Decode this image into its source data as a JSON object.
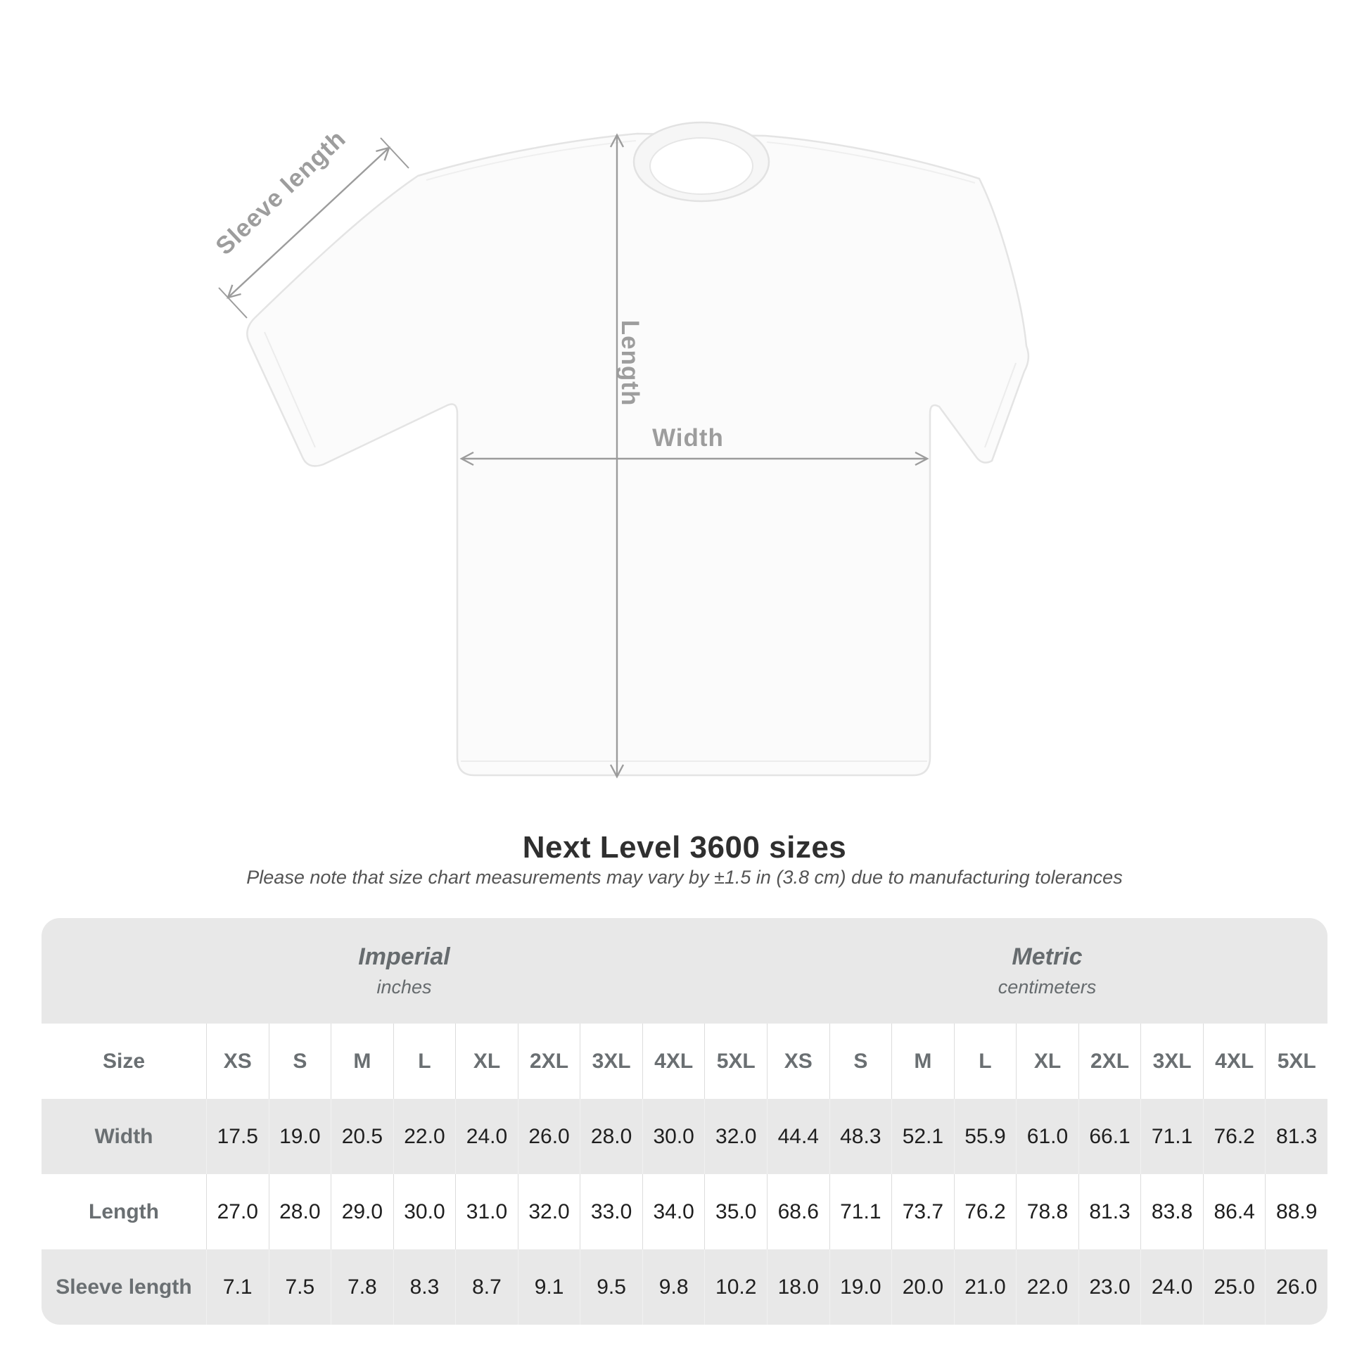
{
  "page": {
    "background": "#ffffff"
  },
  "diagram": {
    "sleeve_length_label": "Sleeve length",
    "length_label": "Length",
    "width_label": "Width",
    "line_color": "#9c9c9c",
    "label_color": "#9d9d9d"
  },
  "heading": {
    "title": "Next Level 3600 sizes",
    "subtitle": "Please note that size chart measurements may vary by ±1.5 in (3.8 cm) due to manufacturing tolerances"
  },
  "table": {
    "band_color": "#e8e8e8",
    "stripe_color": "#e8e8e8",
    "unit_groups": [
      {
        "name": "Imperial",
        "unit": "inches"
      },
      {
        "name": "Metric",
        "unit": "centimeters"
      }
    ],
    "size_col_header": "Size",
    "sizes": [
      "XS",
      "S",
      "M",
      "L",
      "XL",
      "2XL",
      "3XL",
      "4XL",
      "5XL"
    ],
    "rows": [
      {
        "label": "Width",
        "imperial": [
          "17.5",
          "19.0",
          "20.5",
          "22.0",
          "24.0",
          "26.0",
          "28.0",
          "30.0",
          "32.0"
        ],
        "metric": [
          "44.4",
          "48.3",
          "52.1",
          "55.9",
          "61.0",
          "66.1",
          "71.1",
          "76.2",
          "81.3"
        ]
      },
      {
        "label": "Length",
        "imperial": [
          "27.0",
          "28.0",
          "29.0",
          "30.0",
          "31.0",
          "32.0",
          "33.0",
          "34.0",
          "35.0"
        ],
        "metric": [
          "68.6",
          "71.1",
          "73.7",
          "76.2",
          "78.8",
          "81.3",
          "83.8",
          "86.4",
          "88.9"
        ]
      },
      {
        "label": "Sleeve length",
        "imperial": [
          "7.1",
          "7.5",
          "7.8",
          "8.3",
          "8.7",
          "9.1",
          "9.5",
          "9.8",
          "10.2"
        ],
        "metric": [
          "18.0",
          "19.0",
          "20.0",
          "21.0",
          "22.0",
          "23.0",
          "24.0",
          "25.0",
          "26.0"
        ]
      }
    ]
  },
  "chart_data": {
    "type": "table",
    "title": "Next Level 3600 sizes",
    "note": "Please note that size chart measurements may vary by ±1.5 in (3.8 cm) due to manufacturing tolerances",
    "units": [
      "inches",
      "centimeters"
    ],
    "sizes": [
      "XS",
      "S",
      "M",
      "L",
      "XL",
      "2XL",
      "3XL",
      "4XL",
      "5XL"
    ],
    "measurements": {
      "Width": {
        "inches": [
          17.5,
          19.0,
          20.5,
          22.0,
          24.0,
          26.0,
          28.0,
          30.0,
          32.0
        ],
        "centimeters": [
          44.4,
          48.3,
          52.1,
          55.9,
          61.0,
          66.1,
          71.1,
          76.2,
          81.3
        ]
      },
      "Length": {
        "inches": [
          27.0,
          28.0,
          29.0,
          30.0,
          31.0,
          32.0,
          33.0,
          34.0,
          35.0
        ],
        "centimeters": [
          68.6,
          71.1,
          73.7,
          76.2,
          78.8,
          81.3,
          83.8,
          86.4,
          88.9
        ]
      },
      "Sleeve length": {
        "inches": [
          7.1,
          7.5,
          7.8,
          8.3,
          8.7,
          9.1,
          9.5,
          9.8,
          10.2
        ],
        "centimeters": [
          18.0,
          19.0,
          20.0,
          21.0,
          22.0,
          23.0,
          24.0,
          25.0,
          26.0
        ]
      }
    }
  }
}
